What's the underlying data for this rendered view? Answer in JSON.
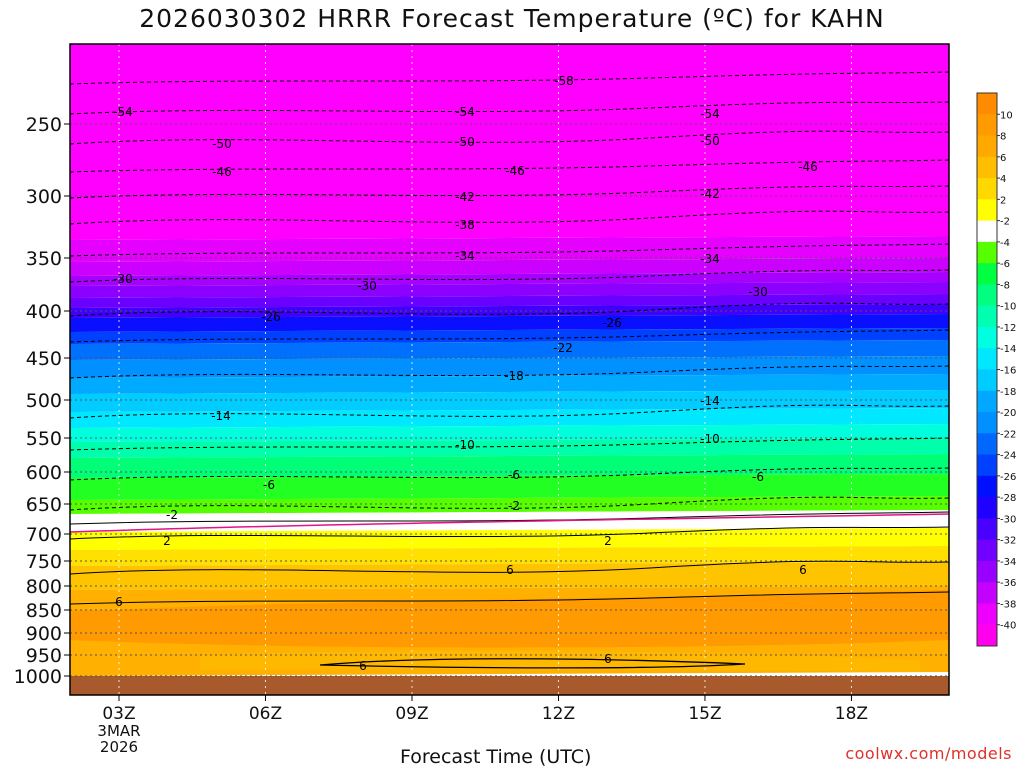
{
  "chart_data": {
    "type": "heatmap",
    "title": "2026030302 HRRR Forecast Temperature (ºC) for KAHN",
    "xlabel": "Forecast Time (UTC)",
    "x_ticks": [
      "03Z",
      "06Z",
      "09Z",
      "12Z",
      "15Z",
      "18Z"
    ],
    "x_tick_hours": [
      3,
      6,
      9,
      12,
      15,
      18
    ],
    "x_range_hours": [
      2,
      20
    ],
    "x_date_note": [
      "3MAR",
      "2026"
    ],
    "y_ticks": [
      250,
      300,
      350,
      400,
      450,
      500,
      550,
      600,
      650,
      700,
      750,
      800,
      850,
      900,
      950,
      1000
    ],
    "y_range_hpa": [
      200,
      1030
    ],
    "y_axis": "pressure (reversed)",
    "colorbar_labels": [
      10,
      8,
      6,
      4,
      2,
      -2,
      -4,
      -6,
      -8,
      -10,
      -12,
      -14,
      -16,
      -18,
      -20,
      -22,
      -24,
      -26,
      -28,
      -30,
      -32,
      -34,
      -36,
      -38,
      -40
    ],
    "colorbar_colors": [
      "#ff8c00",
      "#ff9a00",
      "#ffa800",
      "#ffbe00",
      "#ffd800",
      "#ffff00",
      "#ffffff",
      "#55ff00",
      "#00ff40",
      "#00ff80",
      "#00ffb0",
      "#00ffe0",
      "#00e8ff",
      "#00ccff",
      "#00a8ff",
      "#0090ff",
      "#0068ff",
      "#0040ff",
      "#0010ff",
      "#2000ff",
      "#4800ff",
      "#7000ff",
      "#9800ff",
      "#c400ff",
      "#ee00ff",
      "#ff00ee"
    ],
    "contour_label_values": [
      -58,
      -54,
      -50,
      -46,
      -42,
      -38,
      -34,
      -30,
      -26,
      -22,
      -18,
      -14,
      -10,
      -6,
      -2,
      2,
      6
    ],
    "surface_color": "#a85a2c",
    "grid": true
  },
  "credit": "coolwx.com/models"
}
